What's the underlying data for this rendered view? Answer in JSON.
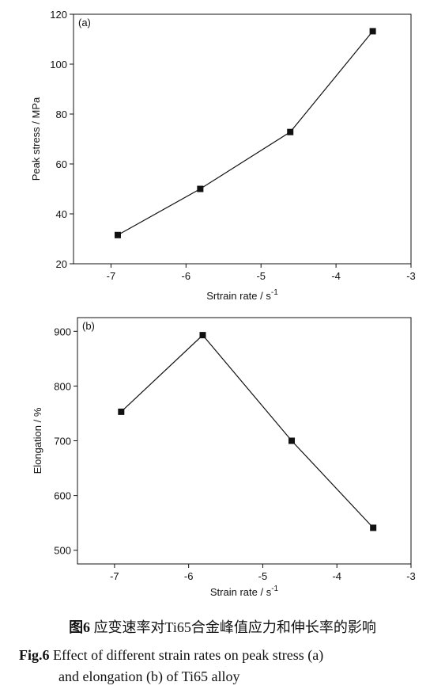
{
  "chart_data": [
    {
      "type": "line",
      "panel_label": "(a)",
      "xlabel": "Srtrain rate / s",
      "xlabel_superscript": "-1",
      "ylabel": "Peak stress / MPa",
      "xlim": [
        -7.5,
        -3
      ],
      "ylim": [
        20,
        120
      ],
      "xticks": [
        -7,
        -6,
        -5,
        -4,
        -3
      ],
      "yticks": [
        20,
        40,
        60,
        80,
        100,
        120
      ],
      "x": [
        -6.91,
        -5.81,
        -4.61,
        -3.51
      ],
      "y": [
        31.5,
        50,
        72.8,
        113.2
      ]
    },
    {
      "type": "line",
      "panel_label": "(b)",
      "xlabel": "Strain rate / s",
      "xlabel_superscript": "-1",
      "ylabel": "Elongation / %",
      "xlim": [
        -7.5,
        -3
      ],
      "ylim": [
        475,
        925
      ],
      "xticks": [
        -7,
        -6,
        -5,
        -4,
        -3
      ],
      "yticks": [
        500,
        600,
        700,
        800,
        900
      ],
      "x": [
        -6.91,
        -5.81,
        -4.61,
        -3.51
      ],
      "y": [
        753,
        893,
        700,
        541
      ]
    }
  ],
  "caption": {
    "cn_label": "图6",
    "cn_text": "应变速率对Ti65合金峰值应力和伸长率的影响",
    "en_label": "Fig.6",
    "en_line1": "Effect of different strain rates on peak stress (a)",
    "en_line2": "and elongation (b) of Ti65 alloy"
  }
}
